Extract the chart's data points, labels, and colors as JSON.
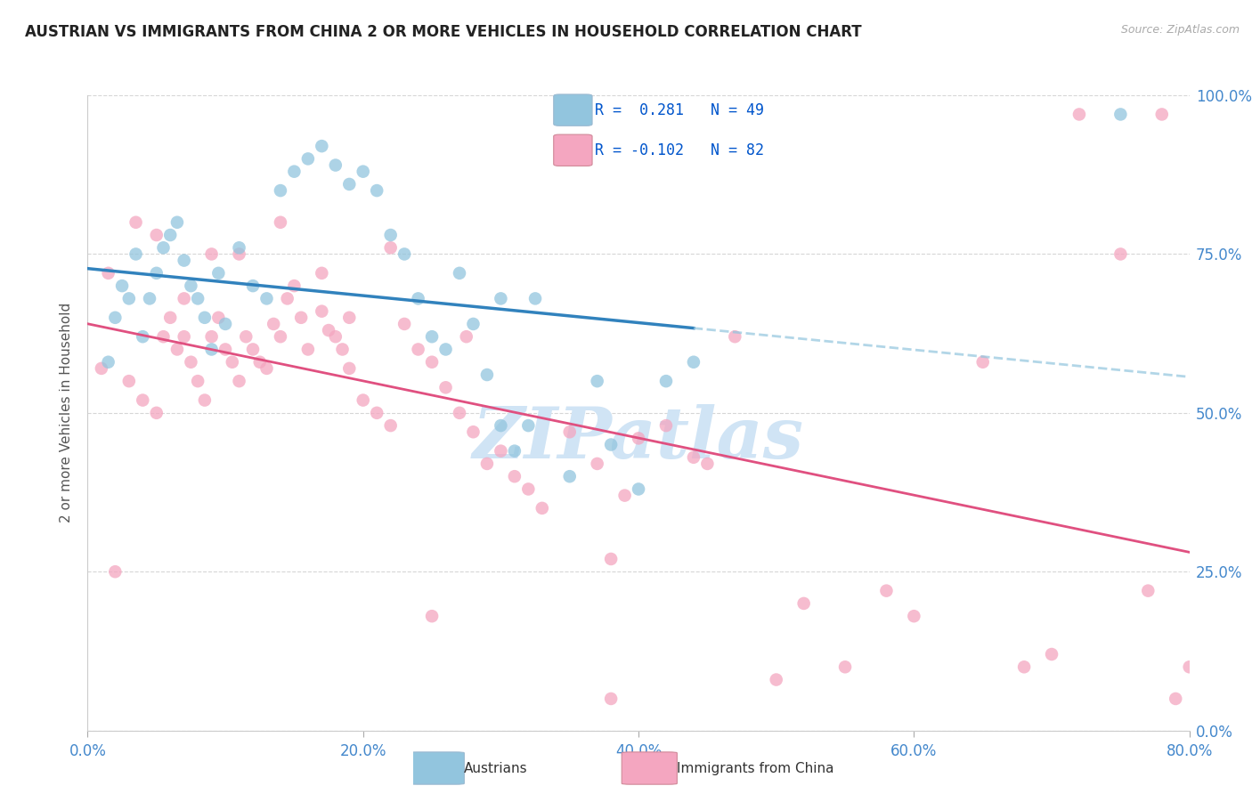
{
  "title": "AUSTRIAN VS IMMIGRANTS FROM CHINA 2 OR MORE VEHICLES IN HOUSEHOLD CORRELATION CHART",
  "source": "Source: ZipAtlas.com",
  "ylabel": "2 or more Vehicles in Household",
  "legend_label1": "Austrians",
  "legend_label2": "Immigrants from China",
  "R1": 0.281,
  "N1": 49,
  "R2": -0.102,
  "N2": 82,
  "xlim": [
    0.0,
    80.0
  ],
  "ylim": [
    0.0,
    100.0
  ],
  "xticks": [
    0.0,
    20.0,
    40.0,
    60.0,
    80.0
  ],
  "yticks": [
    0.0,
    25.0,
    50.0,
    75.0,
    100.0
  ],
  "color_blue": "#92c5de",
  "color_pink": "#f4a6c0",
  "line_blue": "#3182bd",
  "line_pink": "#e05080",
  "line_blue_dash": "#92c5de",
  "watermark": "ZIPatlas",
  "watermark_color": "#d0e4f5",
  "tick_color": "#4488cc",
  "blue_x": [
    1.5,
    2.0,
    2.5,
    3.0,
    3.5,
    4.0,
    4.5,
    5.0,
    5.5,
    6.0,
    6.5,
    7.0,
    7.5,
    8.0,
    8.5,
    9.0,
    9.5,
    10.0,
    11.0,
    12.0,
    13.0,
    14.0,
    15.0,
    16.0,
    17.0,
    18.0,
    19.0,
    20.0,
    21.0,
    22.0,
    23.0,
    24.0,
    25.0,
    26.0,
    27.0,
    28.0,
    29.0,
    30.0,
    31.0,
    32.5,
    35.0,
    37.0,
    38.0,
    40.0,
    42.0,
    44.0,
    30.0,
    32.0,
    75.0
  ],
  "blue_y": [
    58.0,
    65.0,
    70.0,
    68.0,
    75.0,
    62.0,
    68.0,
    72.0,
    76.0,
    78.0,
    80.0,
    74.0,
    70.0,
    68.0,
    65.0,
    60.0,
    72.0,
    64.0,
    76.0,
    70.0,
    68.0,
    85.0,
    88.0,
    90.0,
    92.0,
    89.0,
    86.0,
    88.0,
    85.0,
    78.0,
    75.0,
    68.0,
    62.0,
    60.0,
    72.0,
    64.0,
    56.0,
    48.0,
    44.0,
    68.0,
    40.0,
    55.0,
    45.0,
    38.0,
    55.0,
    58.0,
    68.0,
    48.0,
    97.0
  ],
  "pink_x": [
    1.0,
    2.0,
    3.0,
    4.0,
    5.0,
    5.5,
    6.0,
    6.5,
    7.0,
    7.5,
    8.0,
    8.5,
    9.0,
    9.5,
    10.0,
    10.5,
    11.0,
    11.5,
    12.0,
    12.5,
    13.0,
    13.5,
    14.0,
    14.5,
    15.0,
    15.5,
    16.0,
    17.0,
    17.5,
    18.0,
    18.5,
    19.0,
    20.0,
    21.0,
    22.0,
    23.0,
    24.0,
    25.0,
    26.0,
    27.0,
    27.5,
    28.0,
    29.0,
    30.0,
    31.0,
    32.0,
    33.0,
    35.0,
    37.0,
    38.0,
    39.0,
    40.0,
    42.0,
    44.0,
    45.0,
    47.0,
    50.0,
    52.0,
    55.0,
    58.0,
    60.0,
    65.0,
    68.0,
    70.0,
    72.0,
    75.0,
    77.0,
    78.0,
    79.0,
    80.0,
    1.5,
    3.5,
    5.0,
    7.0,
    9.0,
    11.0,
    14.0,
    17.0,
    19.0,
    22.0,
    25.0,
    38.0
  ],
  "pink_y": [
    57.0,
    25.0,
    55.0,
    52.0,
    50.0,
    62.0,
    65.0,
    60.0,
    62.0,
    58.0,
    55.0,
    52.0,
    62.0,
    65.0,
    60.0,
    58.0,
    55.0,
    62.0,
    60.0,
    58.0,
    57.0,
    64.0,
    62.0,
    68.0,
    70.0,
    65.0,
    60.0,
    66.0,
    63.0,
    62.0,
    60.0,
    57.0,
    52.0,
    50.0,
    48.0,
    64.0,
    60.0,
    58.0,
    54.0,
    50.0,
    62.0,
    47.0,
    42.0,
    44.0,
    40.0,
    38.0,
    35.0,
    47.0,
    42.0,
    27.0,
    37.0,
    46.0,
    48.0,
    43.0,
    42.0,
    62.0,
    8.0,
    20.0,
    10.0,
    22.0,
    18.0,
    58.0,
    10.0,
    12.0,
    97.0,
    75.0,
    22.0,
    97.0,
    5.0,
    10.0,
    72.0,
    80.0,
    78.0,
    68.0,
    75.0,
    75.0,
    80.0,
    72.0,
    65.0,
    76.0,
    18.0,
    5.0
  ]
}
